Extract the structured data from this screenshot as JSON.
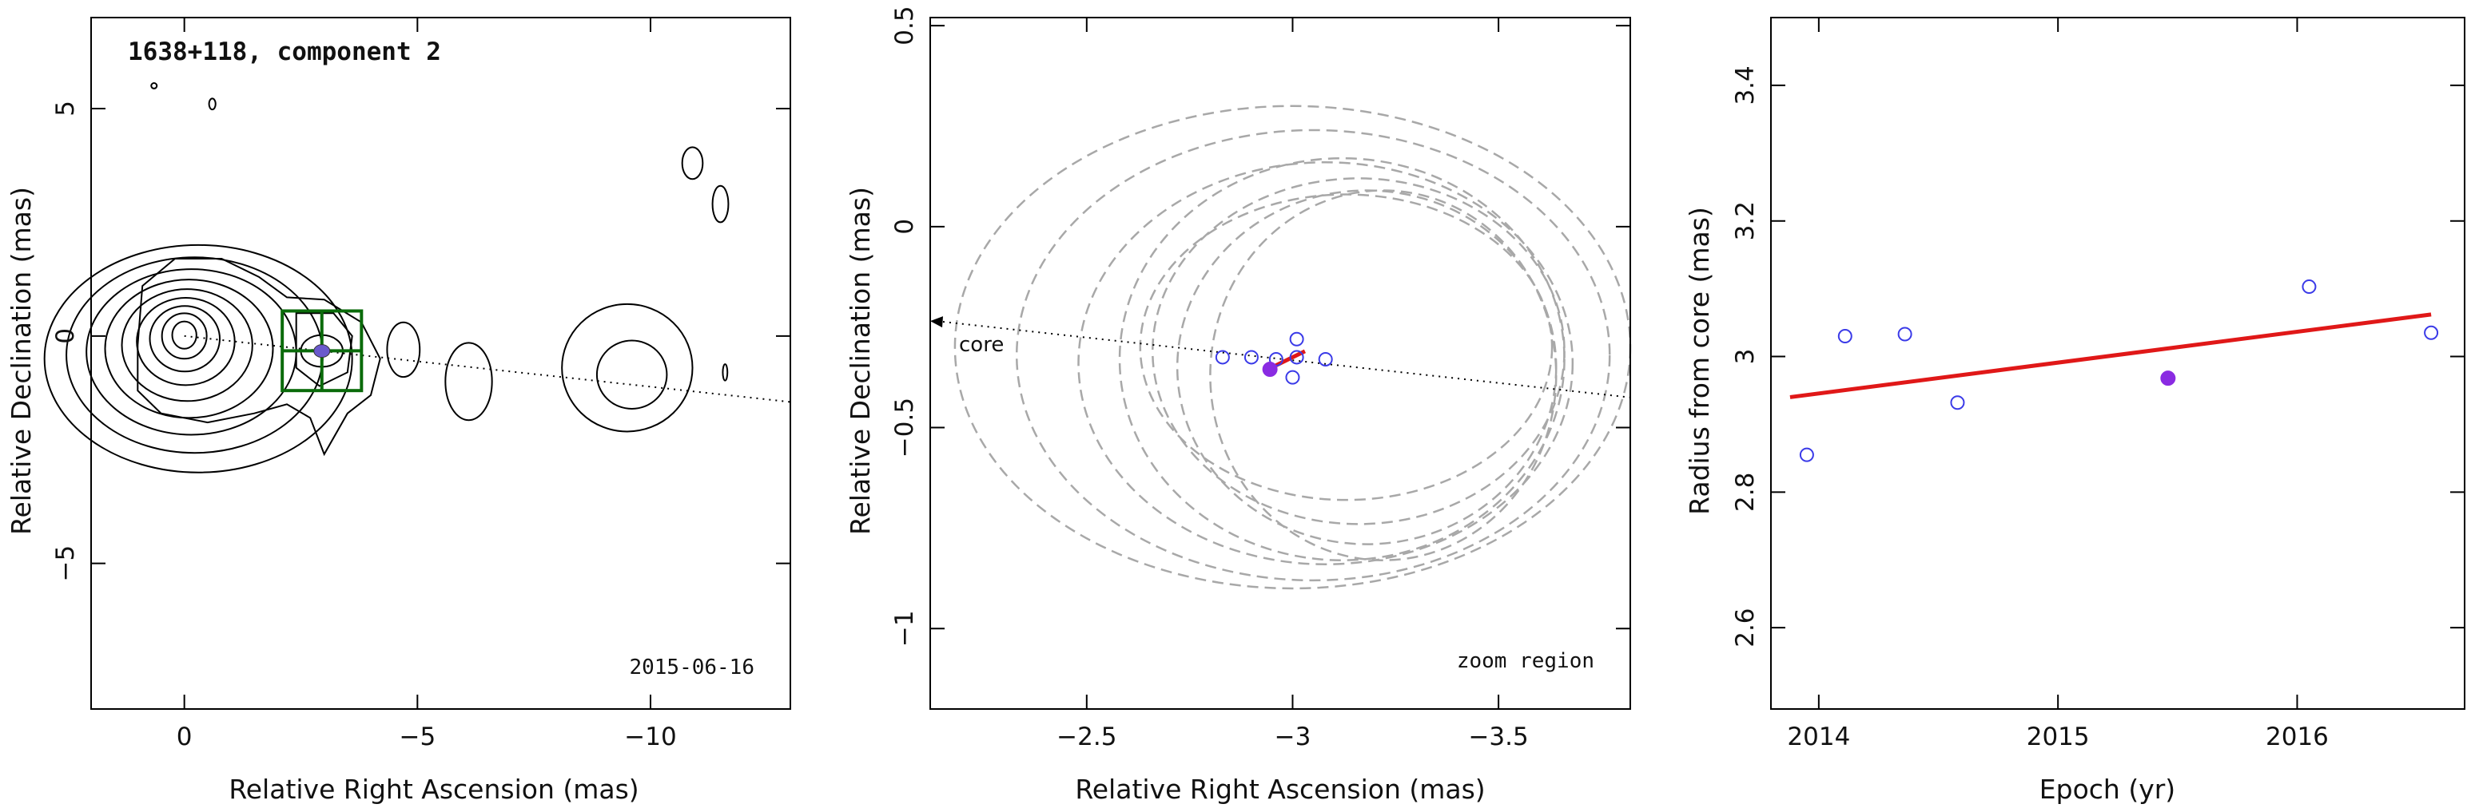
{
  "chart_data": [
    {
      "type": "contour",
      "title": "1638+118, component 2",
      "date_label": "2015-06-16",
      "xlabel": "Relative Right Ascension (mas)",
      "ylabel": "Relative Declination (mas)",
      "xlim": [
        2.0,
        -13.0
      ],
      "ylim": [
        -8.2,
        7.0
      ],
      "xticks": [
        0,
        -5,
        -10
      ],
      "yticks": [
        5,
        0,
        -5
      ],
      "xtick_labels": [
        "0",
        "−5",
        "−10"
      ],
      "ytick_labels": [
        "5",
        "0",
        "−5"
      ],
      "core_position": [
        0.0,
        0.0
      ],
      "component_position": [
        -2.95,
        -0.33
      ],
      "direction_line": {
        "from": [
          0.0,
          0.0
        ],
        "to": [
          -13.0,
          -1.45
        ],
        "style": "dotted"
      },
      "zoom_box": {
        "x": [
          -2.1,
          -3.8
        ],
        "y": [
          0.55,
          -1.2
        ]
      },
      "colors": {
        "contours": "#000000",
        "zoom_box": "#0a6b0a",
        "component": "#6a5acd"
      }
    },
    {
      "type": "scatter",
      "corner_label": "zoom region",
      "core_label": "core",
      "xlabel": "Relative Right Ascension (mas)",
      "ylabel": "Relative Declination (mas)",
      "xlim": [
        -2.12,
        -3.82
      ],
      "ylim": [
        -1.2,
        0.52
      ],
      "xticks": [
        -2.5,
        -3,
        -3.5
      ],
      "yticks": [
        0.5,
        0,
        -0.5,
        -1
      ],
      "xtick_labels": [
        "−2.5",
        "−3",
        "−3.5"
      ],
      "ytick_labels": [
        "0.5",
        "0",
        "−0.5",
        "−1"
      ],
      "points": [
        {
          "x": -2.83,
          "y": -0.325
        },
        {
          "x": -2.9,
          "y": -0.325
        },
        {
          "x": -2.96,
          "y": -0.33
        },
        {
          "x": -3.01,
          "y": -0.28
        },
        {
          "x": -3.01,
          "y": -0.325
        },
        {
          "x": -3.0,
          "y": -0.375
        },
        {
          "x": -3.08,
          "y": -0.33
        }
      ],
      "highlight_point": {
        "x": -2.945,
        "y": -0.355
      },
      "fit_segment": {
        "from": [
          -2.93,
          -0.36
        ],
        "to": [
          -3.03,
          -0.31
        ]
      },
      "direction_line": {
        "from": [
          -2.12,
          -0.235
        ],
        "to": [
          -3.82,
          -0.425
        ]
      },
      "ellipses": [
        {
          "cx": -3.0,
          "cy": -0.3,
          "rx": 0.82,
          "ry": 0.6
        },
        {
          "cx": -3.05,
          "cy": -0.32,
          "rx": 0.72,
          "ry": 0.56
        },
        {
          "cx": -3.08,
          "cy": -0.34,
          "rx": 0.6,
          "ry": 0.5
        },
        {
          "cx": -3.12,
          "cy": -0.33,
          "rx": 0.54,
          "ry": 0.5
        },
        {
          "cx": -3.18,
          "cy": -0.35,
          "rx": 0.46,
          "ry": 0.44
        },
        {
          "cx": -3.16,
          "cy": -0.31,
          "rx": 0.5,
          "ry": 0.43
        },
        {
          "cx": -3.22,
          "cy": -0.37,
          "rx": 0.42,
          "ry": 0.46
        },
        {
          "cx": -3.13,
          "cy": -0.3,
          "rx": 0.5,
          "ry": 0.38
        }
      ],
      "colors": {
        "points": "#3a3ae8",
        "highlight": "#8a2be2",
        "fit": "#e01818",
        "ellipses": "#a8a8a8"
      }
    },
    {
      "type": "scatter",
      "xlabel": "Epoch (yr)",
      "ylabel": "Radius from core (mas)",
      "xlim": [
        2013.8,
        2016.7
      ],
      "ylim": [
        2.48,
        3.5
      ],
      "xticks": [
        2014,
        2015,
        2016
      ],
      "yticks": [
        2.6,
        2.8,
        3.0,
        3.2,
        3.4
      ],
      "xtick_labels": [
        "2014",
        "2015",
        "2016"
      ],
      "ytick_labels": [
        "2.6",
        "2.8",
        "3",
        "3.2",
        "3.4"
      ],
      "points": [
        {
          "x": 2013.95,
          "y": 2.855
        },
        {
          "x": 2014.11,
          "y": 3.03
        },
        {
          "x": 2014.36,
          "y": 3.033
        },
        {
          "x": 2014.58,
          "y": 2.932
        },
        {
          "x": 2016.05,
          "y": 3.103
        },
        {
          "x": 2016.56,
          "y": 3.035
        }
      ],
      "highlight_point": {
        "x": 2015.46,
        "y": 2.968
      },
      "fit_line": {
        "from": [
          2013.88,
          2.94
        ],
        "to": [
          2016.56,
          3.062
        ]
      },
      "colors": {
        "points": "#3a3ae8",
        "highlight": "#8a2be2",
        "fit": "#e01818"
      }
    }
  ]
}
